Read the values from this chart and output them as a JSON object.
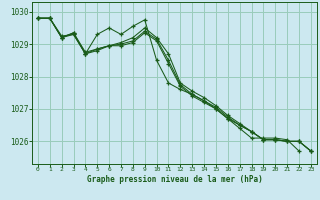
{
  "title": "Graphe pression niveau de la mer (hPa)",
  "background_color": "#cce8f0",
  "grid_color": "#99ccbb",
  "line_color": "#1a5c1a",
  "ylim": [
    1025.3,
    1030.3
  ],
  "xlim": [
    -0.5,
    23.5
  ],
  "yticks": [
    1026,
    1027,
    1028,
    1029,
    1030
  ],
  "xticks": [
    0,
    1,
    2,
    3,
    4,
    5,
    6,
    7,
    8,
    9,
    10,
    11,
    12,
    13,
    14,
    15,
    16,
    17,
    18,
    19,
    20,
    21,
    22,
    23
  ],
  "series1": [
    1029.8,
    1029.8,
    1029.2,
    1029.3,
    1028.7,
    1029.3,
    1029.5,
    1029.3,
    1029.6,
    1029.8,
    1028.5,
    1027.8,
    1027.6,
    1027.4,
    1027.2,
    1026.9,
    1026.65,
    1026.35,
    1026.1,
    1026.1,
    1026.1,
    1026.05,
    1025.7,
    null
  ],
  "series2": [
    1029.8,
    1029.8,
    1029.2,
    1029.35,
    1028.75,
    1028.85,
    1028.95,
    1029.05,
    1029.2,
    1029.5,
    1029.2,
    1028.7,
    1027.8,
    1027.55,
    1027.35,
    1027.1,
    1026.8,
    1026.55,
    1026.3,
    1026.05,
    1026.05,
    1026.0,
    1026.0,
    1025.7
  ],
  "series3": [
    1029.8,
    1029.8,
    1029.25,
    1029.3,
    1028.7,
    1028.85,
    1028.95,
    1029.0,
    1029.1,
    1029.4,
    1029.15,
    1028.5,
    1027.75,
    1027.45,
    1027.25,
    1027.05,
    1026.75,
    1026.5,
    1026.3,
    1026.05,
    1026.05,
    1026.0,
    1026.0,
    1025.7
  ],
  "series4": [
    1029.8,
    1029.8,
    1029.2,
    1029.35,
    1028.7,
    1028.8,
    1028.95,
    1028.95,
    1029.05,
    1029.35,
    1029.1,
    1028.4,
    1027.7,
    1027.4,
    1027.2,
    1027.0,
    1026.7,
    1026.5,
    1026.3,
    1026.05,
    1026.05,
    1026.0,
    1026.0,
    1025.7
  ],
  "series_top": [
    1029.8,
    1029.8,
    1029.2,
    1029.3,
    1028.7,
    1029.3,
    1029.5,
    1029.3,
    1029.55,
    1029.75,
    1028.5,
    1027.8,
    1027.6,
    1027.45,
    1027.25,
    1027.0,
    1026.7,
    1026.4,
    1026.1,
    1026.1,
    1026.1,
    1026.05,
    1025.7,
    null
  ]
}
